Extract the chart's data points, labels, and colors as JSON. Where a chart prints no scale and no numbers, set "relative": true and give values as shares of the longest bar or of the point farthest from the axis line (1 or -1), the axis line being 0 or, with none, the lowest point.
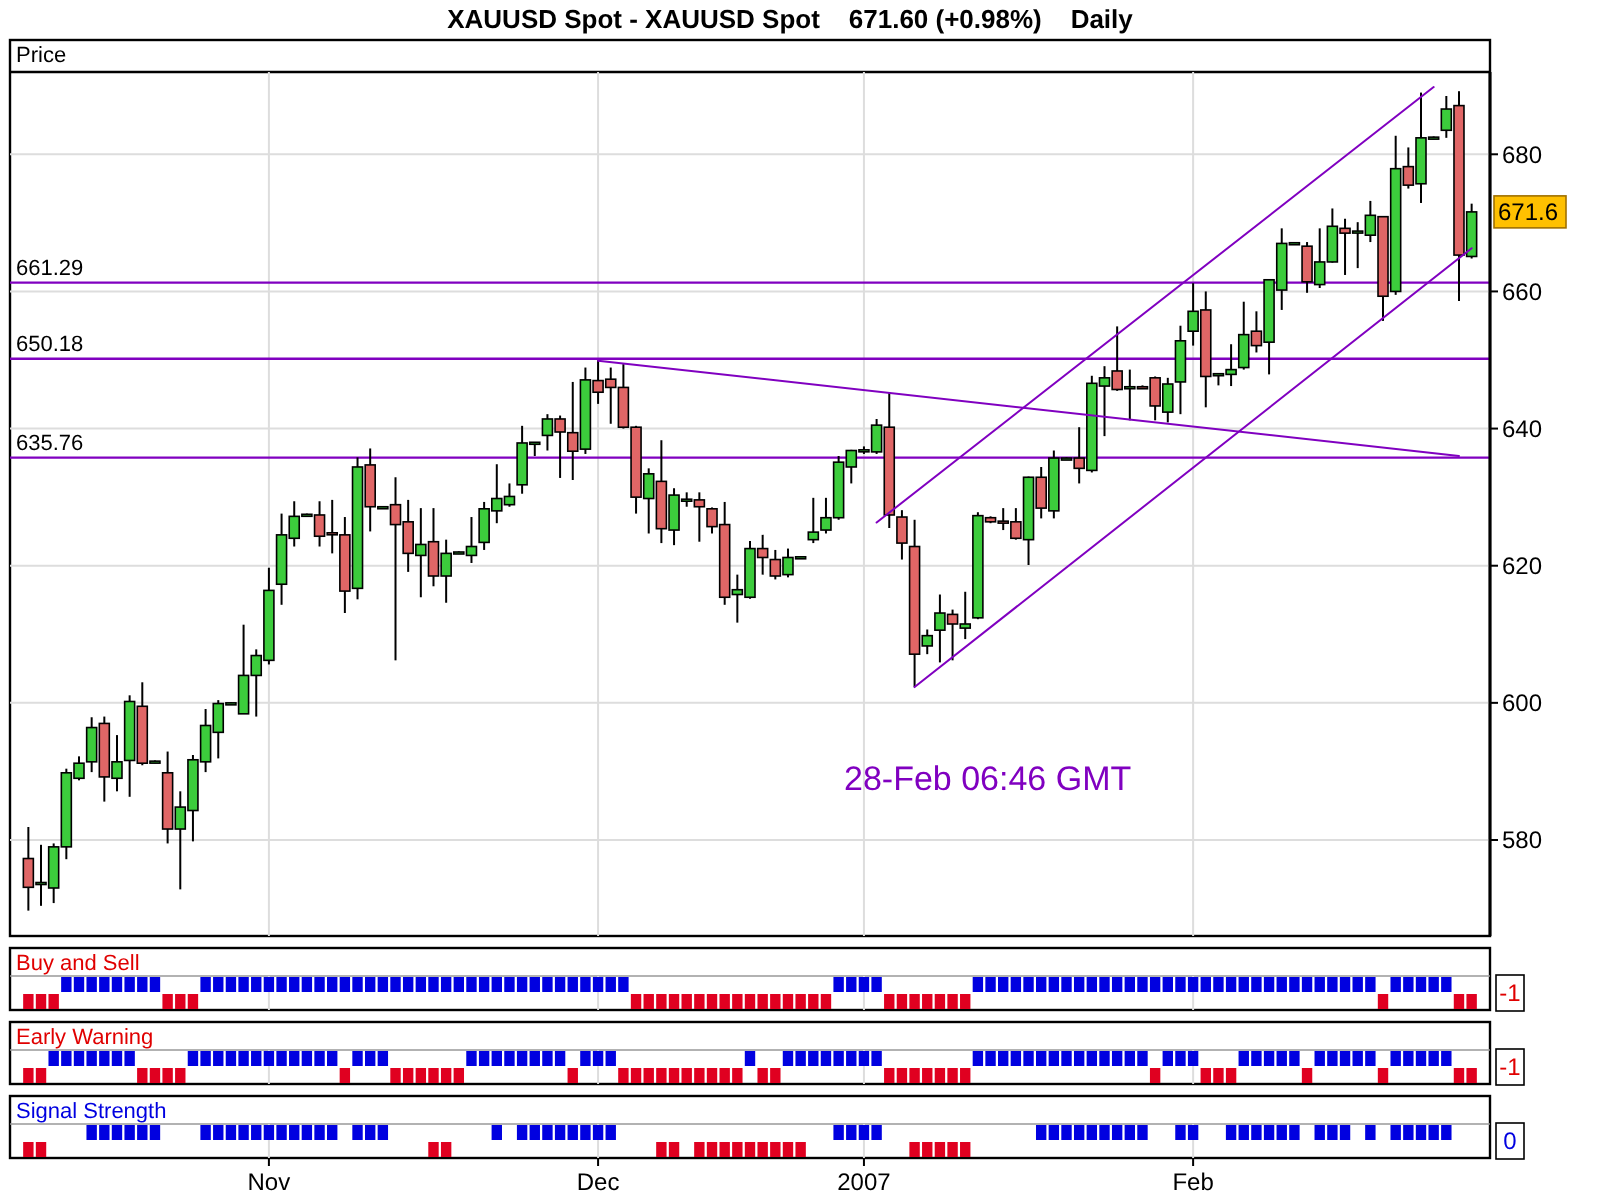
{
  "chart_data": [
    {
      "type": "candlestick",
      "title": "XAUUSD Spot - XAUUSD Spot    671.60 (+0.98%)    Daily",
      "ylabel": "Price",
      "categories": [
        null,
        null,
        null,
        null,
        null,
        null,
        null,
        null,
        null,
        null,
        null,
        null,
        null,
        null,
        null,
        null,
        null,
        null,
        null,
        null,
        null,
        null,
        null,
        null,
        null,
        null,
        null,
        null,
        null,
        null,
        null,
        null,
        null,
        null,
        null,
        null,
        null,
        null,
        null,
        null,
        null,
        null,
        null,
        null,
        null,
        null,
        null,
        null,
        null,
        null,
        null,
        null,
        null,
        null,
        null,
        null,
        null,
        null,
        null,
        null,
        null,
        null,
        null,
        null,
        null,
        null,
        null,
        null,
        null,
        null,
        null,
        null,
        null,
        null,
        null,
        null,
        null,
        null,
        null,
        null,
        null,
        null,
        null,
        null,
        null,
        null,
        null,
        null,
        null,
        null,
        null,
        null,
        null,
        null,
        null,
        null,
        null,
        null,
        null,
        null,
        null,
        null,
        null,
        null,
        null,
        null,
        null,
        null,
        null,
        null,
        null,
        null,
        null,
        null,
        null
      ],
      "ohlc": [
        [
          577.3,
          581.9,
          569.7,
          573.1
        ],
        [
          573.6,
          579.3,
          570.4,
          573.8
        ],
        [
          573.0,
          579.5,
          570.8,
          579.0
        ],
        [
          579.0,
          590.4,
          577.2,
          589.8
        ],
        [
          589.0,
          592.2,
          588.7,
          591.2
        ],
        [
          591.4,
          597.9,
          589.9,
          596.4
        ],
        [
          597.0,
          598.0,
          585.6,
          589.2
        ],
        [
          589.0,
          595.3,
          587.1,
          591.4
        ],
        [
          591.6,
          601.1,
          586.3,
          600.2
        ],
        [
          599.5,
          603.0,
          590.9,
          591.2
        ],
        [
          591.3,
          591.6,
          591.2,
          591.5
        ],
        [
          589.8,
          592.9,
          579.5,
          581.6
        ],
        [
          581.6,
          587.1,
          572.8,
          584.8
        ],
        [
          584.3,
          592.4,
          579.8,
          591.7
        ],
        [
          591.4,
          599.1,
          589.9,
          596.7
        ],
        [
          595.7,
          600.4,
          591.9,
          599.9
        ],
        [
          599.8,
          600.1,
          599.7,
          600.0
        ],
        [
          598.4,
          611.4,
          598.4,
          604.0
        ],
        [
          604.0,
          607.8,
          598.0,
          606.9
        ],
        [
          606.2,
          619.7,
          605.6,
          616.4
        ],
        [
          617.3,
          627.6,
          614.3,
          624.5
        ],
        [
          624.0,
          629.4,
          622.8,
          627.2
        ],
        [
          627.3,
          627.6,
          627.2,
          627.5
        ],
        [
          627.4,
          629.4,
          622.8,
          624.3
        ],
        [
          624.8,
          629.6,
          621.8,
          624.6
        ],
        [
          624.5,
          627.1,
          613.1,
          616.3
        ],
        [
          616.7,
          635.8,
          615.1,
          634.4
        ],
        [
          634.7,
          637.1,
          625.0,
          628.6
        ],
        [
          628.5,
          628.7,
          628.4,
          628.6
        ],
        [
          628.9,
          632.9,
          606.2,
          626.0
        ],
        [
          626.4,
          629.6,
          619.1,
          621.8
        ],
        [
          621.5,
          628.4,
          615.4,
          623.1
        ],
        [
          623.5,
          628.4,
          617.0,
          618.5
        ],
        [
          618.5,
          623.8,
          614.6,
          621.8
        ],
        [
          621.8,
          622.1,
          621.7,
          622.0
        ],
        [
          621.5,
          627.1,
          620.4,
          622.8
        ],
        [
          623.4,
          629.3,
          622.3,
          628.3
        ],
        [
          628.0,
          634.8,
          626.2,
          629.8
        ],
        [
          628.9,
          632.0,
          628.6,
          630.1
        ],
        [
          631.8,
          640.4,
          630.5,
          637.9
        ],
        [
          637.8,
          638.0,
          636.0,
          638.0
        ],
        [
          639.0,
          642.1,
          636.8,
          641.4
        ],
        [
          641.4,
          641.9,
          632.8,
          639.5
        ],
        [
          639.4,
          646.8,
          632.5,
          636.7
        ],
        [
          637.0,
          648.9,
          636.3,
          647.1
        ],
        [
          647.0,
          650.0,
          643.6,
          645.3
        ],
        [
          647.2,
          648.9,
          640.7,
          646.0
        ],
        [
          646.0,
          649.4,
          640.0,
          640.2
        ],
        [
          640.2,
          640.4,
          627.6,
          630.0
        ],
        [
          629.8,
          634.2,
          624.7,
          633.4
        ],
        [
          632.3,
          638.3,
          623.3,
          625.4
        ],
        [
          625.2,
          631.3,
          623.0,
          630.3
        ],
        [
          629.5,
          630.7,
          628.6,
          629.7
        ],
        [
          629.6,
          630.7,
          623.5,
          628.6
        ],
        [
          628.3,
          628.5,
          624.7,
          625.7
        ],
        [
          626.0,
          629.3,
          614.3,
          615.4
        ],
        [
          615.8,
          618.7,
          611.7,
          616.5
        ],
        [
          615.4,
          623.6,
          615.2,
          622.5
        ],
        [
          622.5,
          624.5,
          618.7,
          621.2
        ],
        [
          620.9,
          622.3,
          618.0,
          618.5
        ],
        [
          618.7,
          622.5,
          618.3,
          621.2
        ],
        [
          621.1,
          621.4,
          621.0,
          621.3
        ],
        [
          623.8,
          629.9,
          623.3,
          624.9
        ],
        [
          625.2,
          629.9,
          624.7,
          627.0
        ],
        [
          627.0,
          636.0,
          626.7,
          635.1
        ],
        [
          634.4,
          636.9,
          632.0,
          636.8
        ],
        [
          636.7,
          637.4,
          636.3,
          636.9
        ],
        [
          636.6,
          641.4,
          636.3,
          640.5
        ],
        [
          640.2,
          645.3,
          625.5,
          627.4
        ],
        [
          627.1,
          628.1,
          620.9,
          623.3
        ],
        [
          622.8,
          626.7,
          602.3,
          607.1
        ],
        [
          608.3,
          610.7,
          607.1,
          609.8
        ],
        [
          610.6,
          615.8,
          605.9,
          613.1
        ],
        [
          612.9,
          613.6,
          606.2,
          611.5
        ],
        [
          610.9,
          616.2,
          609.3,
          611.5
        ],
        [
          612.4,
          627.8,
          612.2,
          627.3
        ],
        [
          627.0,
          627.2,
          626.2,
          626.4
        ],
        [
          626.5,
          628.4,
          625.2,
          626.4
        ],
        [
          626.4,
          628.4,
          623.8,
          624.0
        ],
        [
          623.8,
          633.0,
          620.1,
          632.9
        ],
        [
          632.9,
          634.4,
          626.9,
          628.4
        ],
        [
          628.0,
          636.8,
          626.9,
          635.7
        ],
        [
          635.6,
          635.8,
          635.5,
          635.7
        ],
        [
          635.7,
          640.2,
          632.0,
          634.2
        ],
        [
          633.9,
          647.7,
          633.6,
          646.6
        ],
        [
          646.2,
          649.1,
          638.9,
          647.4
        ],
        [
          648.4,
          654.9,
          645.5,
          645.7
        ],
        [
          646.0,
          648.6,
          641.2,
          646.1
        ],
        [
          646.1,
          646.3,
          645.8,
          645.9
        ],
        [
          647.4,
          647.6,
          641.2,
          643.3
        ],
        [
          642.4,
          647.4,
          640.9,
          646.5
        ],
        [
          646.8,
          655.0,
          642.1,
          652.8
        ],
        [
          654.2,
          661.2,
          652.1,
          657.1
        ],
        [
          657.3,
          660.0,
          643.1,
          647.6
        ],
        [
          647.8,
          648.1,
          646.3,
          648.0
        ],
        [
          647.9,
          652.3,
          646.2,
          648.6
        ],
        [
          648.9,
          658.5,
          648.6,
          653.7
        ],
        [
          654.2,
          657.1,
          651.1,
          652.1
        ],
        [
          652.6,
          661.8,
          647.9,
          661.7
        ],
        [
          660.2,
          669.2,
          657.3,
          667.0
        ],
        [
          666.9,
          667.2,
          666.8,
          667.1
        ],
        [
          666.6,
          667.2,
          659.8,
          661.4
        ],
        [
          661.0,
          669.2,
          660.5,
          664.3
        ],
        [
          664.3,
          672.1,
          664.2,
          669.5
        ],
        [
          669.2,
          670.6,
          662.4,
          668.5
        ],
        [
          668.6,
          670.1,
          663.4,
          668.8
        ],
        [
          668.2,
          673.2,
          667.2,
          671.1
        ],
        [
          670.9,
          671.0,
          655.7,
          659.3
        ],
        [
          660.0,
          682.7,
          659.5,
          677.9
        ],
        [
          678.2,
          681.0,
          675.0,
          675.5
        ],
        [
          675.7,
          689.0,
          672.9,
          682.4
        ],
        [
          682.3,
          682.6,
          682.2,
          682.5
        ],
        [
          683.5,
          688.5,
          682.4,
          686.6
        ],
        [
          687.1,
          689.2,
          658.6,
          665.3
        ],
        [
          665.1,
          672.8,
          664.8,
          671.6
        ]
      ],
      "series": [
        {
          "type": "line",
          "color": "#8000c0",
          "values": [
            null,
            null,
            null,
            null,
            null,
            null,
            null,
            null,
            null,
            null,
            null,
            null,
            null,
            null,
            null,
            null,
            null,
            null,
            null,
            null,
            null,
            null,
            null,
            null,
            null,
            null,
            null,
            null,
            null,
            null,
            null,
            null,
            null,
            null,
            null,
            null,
            null,
            null,
            null,
            null,
            null,
            null,
            null,
            null,
            null,
            649.9,
            null,
            null,
            null,
            null,
            null,
            null,
            null,
            null,
            null,
            null,
            null,
            null,
            null,
            null,
            null,
            null,
            null,
            null,
            null,
            null,
            null,
            null,
            null,
            null,
            null,
            null,
            null,
            null,
            null,
            null,
            null,
            null,
            null,
            null,
            null,
            null,
            null,
            null,
            null,
            null,
            null,
            null,
            null,
            null,
            null,
            null,
            null,
            null,
            null,
            null,
            null,
            null,
            null,
            null,
            null,
            null,
            null,
            null,
            null,
            null,
            null,
            null,
            null,
            null,
            null,
            null,
            null,
            636.0,
            null
          ]
        },
        {
          "type": "line",
          "color": "#8000c0",
          "values": [
            null,
            null,
            null,
            null,
            null,
            null,
            null,
            null,
            null,
            null,
            null,
            null,
            null,
            null,
            null,
            null,
            null,
            null,
            null,
            null,
            null,
            null,
            null,
            null,
            null,
            null,
            null,
            null,
            null,
            null,
            null,
            null,
            null,
            null,
            null,
            null,
            null,
            null,
            null,
            null,
            null,
            null,
            null,
            null,
            null,
            null,
            null,
            null,
            null,
            null,
            null,
            null,
            null,
            null,
            null,
            null,
            null,
            null,
            null,
            null,
            null,
            null,
            null,
            null,
            null,
            null,
            null,
            626.3,
            null,
            null,
            null,
            null,
            null,
            null,
            null,
            null,
            null,
            null,
            null,
            null,
            null,
            null,
            null,
            null,
            null,
            null,
            null,
            null,
            null,
            null,
            null,
            null,
            null,
            null,
            null,
            null,
            null,
            null,
            null,
            null,
            null,
            null,
            null,
            null,
            null,
            null,
            null,
            null,
            null,
            null,
            null,
            689.8,
            null,
            null,
            null
          ]
        },
        {
          "type": "line",
          "color": "#8000c0",
          "values": [
            null,
            null,
            null,
            null,
            null,
            null,
            null,
            null,
            null,
            null,
            null,
            null,
            null,
            null,
            null,
            null,
            null,
            null,
            null,
            null,
            null,
            null,
            null,
            null,
            null,
            null,
            null,
            null,
            null,
            null,
            null,
            null,
            null,
            null,
            null,
            null,
            null,
            null,
            null,
            null,
            null,
            null,
            null,
            null,
            null,
            null,
            null,
            null,
            null,
            null,
            null,
            null,
            null,
            null,
            null,
            null,
            null,
            null,
            null,
            null,
            null,
            null,
            null,
            null,
            null,
            null,
            null,
            null,
            null,
            null,
            602.3,
            null,
            null,
            null,
            null,
            null,
            null,
            null,
            null,
            null,
            null,
            null,
            null,
            null,
            null,
            null,
            null,
            null,
            null,
            null,
            null,
            null,
            null,
            null,
            null,
            null,
            null,
            null,
            null,
            null,
            null,
            null,
            null,
            null,
            null,
            null,
            null,
            null,
            null,
            null,
            null,
            null,
            null,
            null,
            666.3
          ]
        }
      ],
      "ylim": [
        566,
        692
      ],
      "yticks": [
        580,
        600,
        620,
        640,
        660,
        680
      ],
      "grid": true,
      "tick_labels": "y",
      "ref_lines": [
        {
          "axis": "y",
          "value": 661.29,
          "label": "661.29",
          "color": "#8000c0"
        },
        {
          "axis": "y",
          "value": 650.18,
          "label": "650.18",
          "color": "#8000c0"
        },
        {
          "axis": "y",
          "value": 635.76,
          "label": "635.76",
          "color": "#8000c0"
        }
      ],
      "annotations": [
        {
          "text": "671.6",
          "y": 671.6
        },
        "28-Feb 06:46 GMT"
      ]
    },
    {
      "type": "bar",
      "title": "Buy and Sell",
      "relative": true,
      "grid": "x",
      "tick_labels": false,
      "categories": [
        null,
        null,
        null,
        null,
        null,
        null,
        null,
        null,
        null,
        null,
        null,
        null,
        null,
        null,
        null,
        null,
        null,
        null,
        null,
        null,
        null,
        null,
        null,
        null,
        null,
        null,
        null,
        null,
        null,
        null,
        null,
        null,
        null,
        null,
        null,
        null,
        null,
        null,
        null,
        null,
        null,
        null,
        null,
        null,
        null,
        null,
        null,
        null,
        null,
        null,
        null,
        null,
        null,
        null,
        null,
        null,
        null,
        null,
        null,
        null,
        null,
        null,
        null,
        null,
        null,
        null,
        null,
        null,
        null,
        null,
        null,
        null,
        null,
        null,
        null,
        null,
        null,
        null,
        null,
        null,
        null,
        null,
        null,
        null,
        null,
        null,
        null,
        null,
        null,
        null,
        null,
        null,
        null,
        null,
        null,
        null,
        null,
        null,
        null,
        null,
        null,
        null,
        null,
        null,
        null,
        null,
        null,
        null,
        null,
        null,
        null,
        null,
        null,
        null,
        null
      ],
      "series": [
        {
          "color": "#0000e0",
          "values": [
            null,
            null,
            null,
            1,
            1,
            1,
            1,
            1,
            1,
            1,
            1,
            null,
            null,
            null,
            1,
            1,
            1,
            1,
            1,
            1,
            1,
            1,
            1,
            1,
            1,
            1,
            1,
            1,
            1,
            1,
            1,
            1,
            1,
            1,
            1,
            1,
            1,
            1,
            1,
            1,
            1,
            1,
            1,
            1,
            1,
            1,
            1,
            1,
            null,
            null,
            null,
            null,
            null,
            null,
            null,
            null,
            null,
            null,
            null,
            null,
            null,
            null,
            null,
            null,
            1,
            1,
            1,
            1,
            null,
            null,
            null,
            null,
            null,
            null,
            null,
            1,
            1,
            1,
            1,
            1,
            1,
            1,
            1,
            1,
            1,
            1,
            1,
            1,
            1,
            1,
            1,
            1,
            1,
            1,
            1,
            1,
            1,
            1,
            1,
            1,
            1,
            1,
            1,
            1,
            1,
            1,
            1,
            null,
            1,
            1,
            1,
            1,
            1,
            null,
            null
          ]
        },
        {
          "color": "#e00020",
          "values": [
            -1,
            -1,
            -1,
            null,
            null,
            null,
            null,
            null,
            null,
            null,
            null,
            -1,
            -1,
            -1,
            null,
            null,
            null,
            null,
            null,
            null,
            null,
            null,
            null,
            null,
            null,
            null,
            null,
            null,
            null,
            null,
            null,
            null,
            null,
            null,
            null,
            null,
            null,
            null,
            null,
            null,
            null,
            null,
            null,
            null,
            null,
            null,
            null,
            null,
            -1,
            -1,
            -1,
            -1,
            -1,
            -1,
            -1,
            -1,
            -1,
            -1,
            -1,
            -1,
            -1,
            -1,
            -1,
            -1,
            null,
            null,
            null,
            null,
            -1,
            -1,
            -1,
            -1,
            -1,
            -1,
            -1,
            null,
            null,
            null,
            null,
            null,
            null,
            null,
            null,
            null,
            null,
            null,
            null,
            null,
            null,
            null,
            null,
            null,
            null,
            null,
            null,
            null,
            null,
            null,
            null,
            null,
            null,
            null,
            null,
            null,
            null,
            null,
            null,
            -1,
            null,
            null,
            null,
            null,
            null,
            -1,
            -1
          ]
        }
      ],
      "annotations": [
        "-1"
      ]
    },
    {
      "type": "bar",
      "title": "Early Warning",
      "relative": true,
      "grid": "x",
      "tick_labels": false,
      "categories": [
        null,
        null,
        null,
        null,
        null,
        null,
        null,
        null,
        null,
        null,
        null,
        null,
        null,
        null,
        null,
        null,
        null,
        null,
        null,
        null,
        null,
        null,
        null,
        null,
        null,
        null,
        null,
        null,
        null,
        null,
        null,
        null,
        null,
        null,
        null,
        null,
        null,
        null,
        null,
        null,
        null,
        null,
        null,
        null,
        null,
        null,
        null,
        null,
        null,
        null,
        null,
        null,
        null,
        null,
        null,
        null,
        null,
        null,
        null,
        null,
        null,
        null,
        null,
        null,
        null,
        null,
        null,
        null,
        null,
        null,
        null,
        null,
        null,
        null,
        null,
        null,
        null,
        null,
        null,
        null,
        null,
        null,
        null,
        null,
        null,
        null,
        null,
        null,
        null,
        null,
        null,
        null,
        null,
        null,
        null,
        null,
        null,
        null,
        null,
        null,
        null,
        null,
        null,
        null,
        null,
        null,
        null,
        null,
        null,
        null,
        null,
        null,
        null,
        null,
        null
      ],
      "series": [
        {
          "color": "#0000e0",
          "values": [
            null,
            null,
            1,
            1,
            1,
            1,
            1,
            1,
            1,
            null,
            null,
            null,
            null,
            1,
            1,
            1,
            1,
            1,
            1,
            1,
            1,
            1,
            1,
            1,
            1,
            null,
            1,
            1,
            1,
            null,
            null,
            null,
            null,
            null,
            null,
            1,
            1,
            1,
            1,
            1,
            1,
            1,
            1,
            null,
            1,
            1,
            1,
            null,
            null,
            null,
            null,
            null,
            null,
            null,
            null,
            null,
            null,
            1,
            null,
            null,
            1,
            1,
            1,
            1,
            1,
            1,
            1,
            1,
            null,
            null,
            null,
            null,
            null,
            null,
            null,
            1,
            1,
            1,
            1,
            1,
            1,
            1,
            1,
            1,
            1,
            1,
            1,
            1,
            1,
            null,
            1,
            1,
            1,
            null,
            null,
            null,
            1,
            1,
            1,
            1,
            1,
            null,
            1,
            1,
            1,
            1,
            1,
            null,
            1,
            1,
            1,
            1,
            1,
            null,
            null
          ]
        },
        {
          "color": "#e00020",
          "values": [
            -1,
            -1,
            null,
            null,
            null,
            null,
            null,
            null,
            null,
            -1,
            -1,
            -1,
            -1,
            null,
            null,
            null,
            null,
            null,
            null,
            null,
            null,
            null,
            null,
            null,
            null,
            -1,
            null,
            null,
            null,
            -1,
            -1,
            -1,
            -1,
            -1,
            -1,
            null,
            null,
            null,
            null,
            null,
            null,
            null,
            null,
            -1,
            null,
            null,
            null,
            -1,
            -1,
            -1,
            -1,
            -1,
            -1,
            -1,
            -1,
            -1,
            -1,
            null,
            -1,
            -1,
            null,
            null,
            null,
            null,
            null,
            null,
            null,
            null,
            -1,
            -1,
            -1,
            -1,
            -1,
            -1,
            -1,
            null,
            null,
            null,
            null,
            null,
            null,
            null,
            null,
            null,
            null,
            null,
            null,
            null,
            null,
            -1,
            null,
            null,
            null,
            -1,
            -1,
            -1,
            null,
            null,
            null,
            null,
            null,
            -1,
            null,
            null,
            null,
            null,
            null,
            -1,
            null,
            null,
            null,
            null,
            null,
            -1,
            -1
          ]
        }
      ],
      "annotations": [
        "-1"
      ]
    },
    {
      "type": "bar",
      "title": "Signal Strength",
      "relative": true,
      "grid": "x",
      "tick_labels": "x",
      "categories": [
        null,
        null,
        null,
        null,
        null,
        null,
        null,
        null,
        null,
        null,
        null,
        null,
        null,
        null,
        null,
        null,
        null,
        null,
        null,
        "Nov",
        null,
        null,
        null,
        null,
        null,
        null,
        null,
        null,
        null,
        null,
        null,
        null,
        null,
        null,
        null,
        null,
        null,
        null,
        null,
        null,
        null,
        null,
        null,
        null,
        null,
        "Dec",
        null,
        null,
        null,
        null,
        null,
        null,
        null,
        null,
        null,
        null,
        null,
        null,
        null,
        null,
        null,
        null,
        null,
        null,
        null,
        null,
        "2007",
        null,
        null,
        null,
        null,
        null,
        null,
        null,
        null,
        null,
        null,
        null,
        null,
        null,
        null,
        null,
        null,
        null,
        null,
        null,
        null,
        null,
        null,
        null,
        null,
        null,
        "Feb",
        null,
        null,
        null,
        null,
        null,
        null,
        null,
        null,
        null,
        null,
        null,
        null,
        null,
        null,
        null,
        null,
        null,
        null,
        null,
        null,
        null,
        null
      ],
      "series": [
        {
          "color": "#0000e0",
          "values": [
            null,
            null,
            null,
            null,
            null,
            1,
            1,
            1,
            1,
            1,
            1,
            null,
            null,
            null,
            1,
            1,
            1,
            1,
            1,
            1,
            1,
            1,
            1,
            1,
            1,
            null,
            1,
            1,
            1,
            null,
            null,
            null,
            null,
            null,
            null,
            null,
            null,
            1,
            null,
            1,
            1,
            1,
            1,
            1,
            1,
            1,
            1,
            null,
            null,
            null,
            null,
            null,
            null,
            null,
            null,
            null,
            null,
            null,
            null,
            null,
            null,
            null,
            null,
            null,
            1,
            1,
            1,
            1,
            null,
            null,
            null,
            null,
            null,
            null,
            null,
            null,
            null,
            null,
            null,
            null,
            1,
            1,
            1,
            1,
            1,
            1,
            1,
            1,
            1,
            null,
            null,
            1,
            1,
            null,
            null,
            1,
            1,
            1,
            1,
            1,
            1,
            null,
            1,
            1,
            1,
            null,
            1,
            null,
            1,
            1,
            1,
            1,
            1,
            null,
            null
          ]
        },
        {
          "color": "#e00020",
          "values": [
            -1,
            -1,
            null,
            null,
            null,
            null,
            null,
            null,
            null,
            null,
            null,
            null,
            null,
            null,
            null,
            null,
            null,
            null,
            null,
            null,
            null,
            null,
            null,
            null,
            null,
            null,
            null,
            null,
            null,
            null,
            null,
            null,
            -1,
            -1,
            null,
            null,
            null,
            null,
            null,
            null,
            null,
            null,
            null,
            null,
            null,
            null,
            null,
            null,
            null,
            null,
            -1,
            -1,
            null,
            -1,
            -1,
            -1,
            -1,
            -1,
            -1,
            -1,
            -1,
            -1,
            null,
            null,
            null,
            null,
            null,
            null,
            null,
            null,
            -1,
            -1,
            -1,
            -1,
            -1,
            null,
            null,
            null,
            null,
            null,
            null,
            null,
            null,
            null,
            null,
            null,
            null,
            null,
            null,
            null,
            null,
            null,
            null,
            null,
            null,
            null,
            null,
            null,
            null,
            null,
            null,
            null,
            null,
            null,
            null,
            null,
            null,
            null,
            null,
            null,
            null,
            null,
            null,
            null,
            null
          ]
        }
      ],
      "annotations": [
        "0"
      ]
    }
  ]
}
